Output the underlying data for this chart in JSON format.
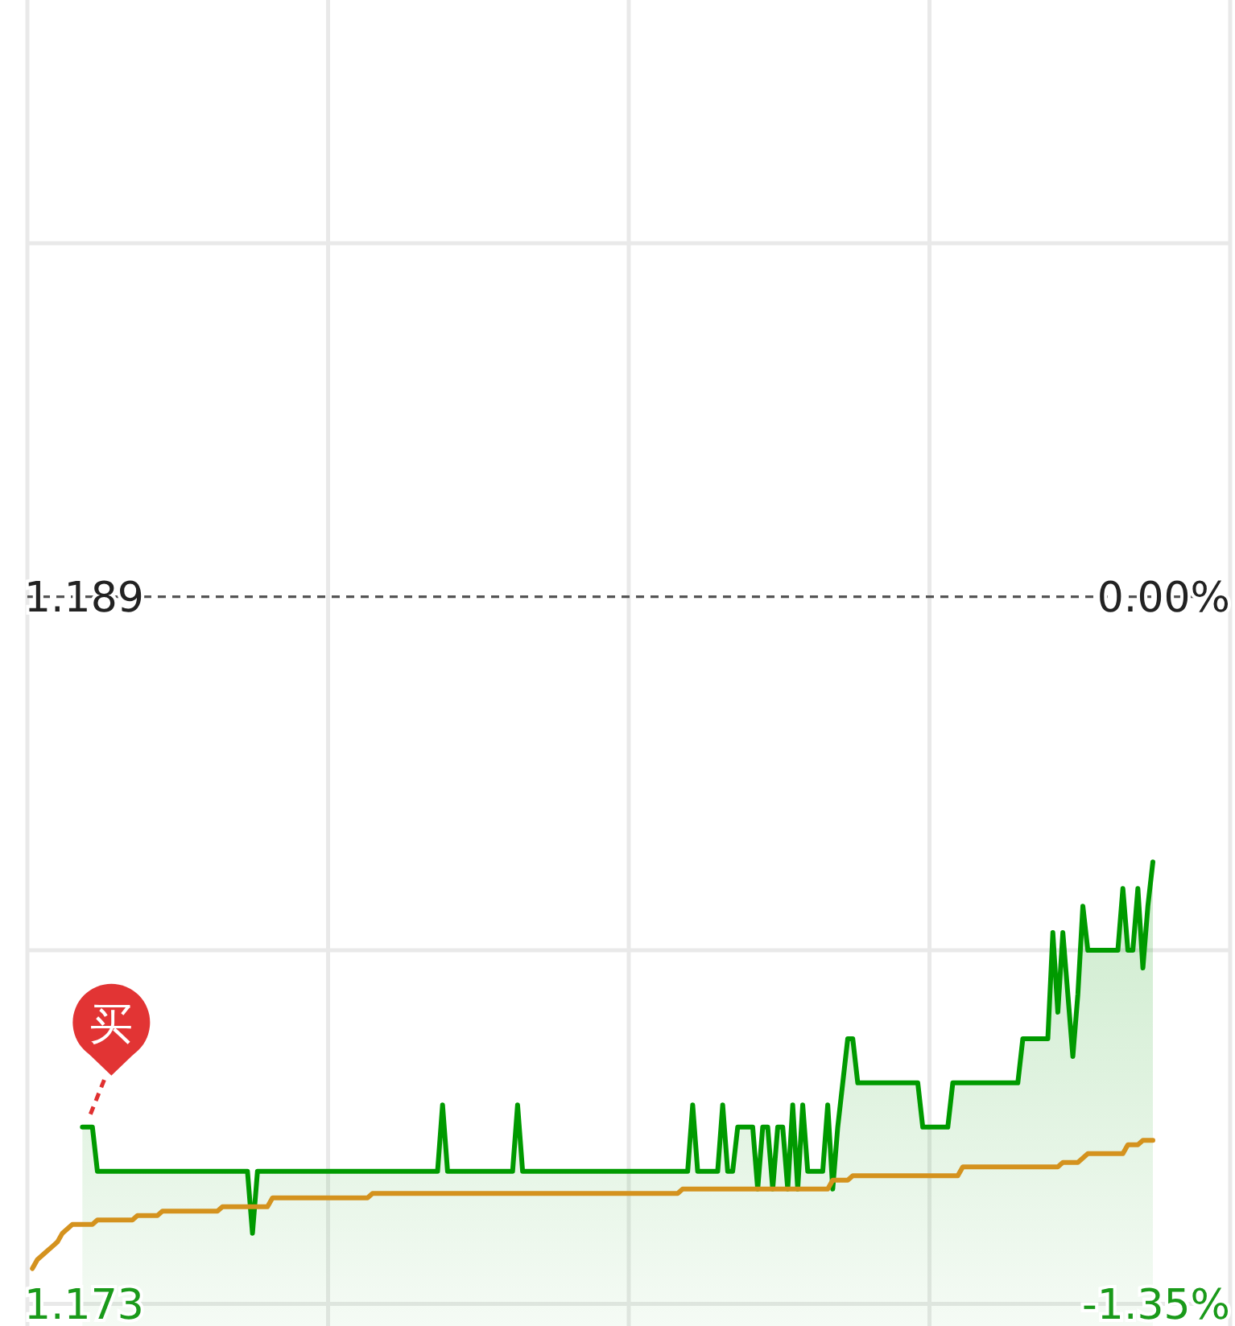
{
  "chart_data": {
    "type": "line",
    "categories": [
      null,
      null,
      null,
      null,
      null,
      null,
      null,
      null,
      null,
      null,
      null,
      null,
      null,
      null,
      null,
      null,
      null,
      null,
      null,
      null,
      null,
      null,
      null,
      null,
      null,
      null,
      null,
      null,
      null,
      null,
      null,
      null,
      null,
      null,
      null,
      null,
      null,
      null,
      null,
      null,
      null,
      null,
      null,
      null,
      null,
      null,
      null,
      null,
      null,
      null,
      null,
      null,
      null,
      null,
      null,
      null,
      null,
      null,
      null,
      null,
      null,
      null,
      null,
      null,
      null,
      null,
      null,
      null,
      null,
      null,
      null,
      null,
      null,
      null,
      null,
      null,
      null,
      null,
      null,
      null,
      null,
      null,
      null,
      null,
      null,
      null,
      null,
      null,
      null,
      null,
      null,
      null,
      null,
      null,
      null,
      null,
      null,
      null,
      null,
      null,
      null,
      null,
      null,
      null,
      null,
      null,
      null,
      null,
      null,
      null,
      null,
      null,
      null,
      null,
      null,
      null,
      null,
      null,
      null,
      null,
      null,
      null,
      null,
      null,
      null,
      null,
      null,
      null,
      null,
      null,
      null,
      null,
      null,
      null,
      null,
      null,
      null,
      null,
      null,
      null,
      null,
      null,
      null,
      null,
      null,
      null,
      null,
      null,
      null,
      null,
      null,
      null,
      null,
      null,
      null,
      null,
      null,
      null,
      null,
      null,
      null,
      null,
      null,
      null,
      null,
      null,
      null,
      null,
      null,
      null,
      null,
      null,
      null,
      null,
      null,
      null,
      null,
      null,
      null,
      null,
      null,
      null,
      null,
      null,
      null,
      null,
      null,
      null,
      null,
      null,
      null,
      null,
      null,
      null,
      null,
      null,
      null,
      null,
      null,
      null,
      null,
      null,
      null,
      null,
      null,
      null,
      null,
      null,
      null,
      null,
      null,
      null,
      null,
      null,
      null,
      null,
      null,
      null,
      null,
      null,
      null,
      null,
      null,
      null,
      null,
      null
    ],
    "series": [
      {
        "type": "area",
        "color": "#009a00",
        "values": [
          null,
          null,
          null,
          null,
          null,
          null,
          null,
          null,
          null,
          null,
          null,
          1.177,
          1.177,
          1.177,
          1.176,
          1.176,
          1.176,
          1.176,
          1.176,
          1.176,
          1.176,
          1.176,
          1.176,
          1.176,
          1.176,
          1.176,
          1.176,
          1.176,
          1.176,
          1.176,
          1.176,
          1.176,
          1.176,
          1.176,
          1.176,
          1.176,
          1.176,
          1.176,
          1.176,
          1.176,
          1.176,
          1.176,
          1.176,
          1.176,
          1.176,
          1.1746,
          1.176,
          1.176,
          1.176,
          1.176,
          1.176,
          1.176,
          1.176,
          1.176,
          1.176,
          1.176,
          1.176,
          1.176,
          1.176,
          1.176,
          1.176,
          1.176,
          1.176,
          1.176,
          1.176,
          1.176,
          1.176,
          1.176,
          1.176,
          1.176,
          1.176,
          1.176,
          1.176,
          1.176,
          1.176,
          1.176,
          1.176,
          1.176,
          1.176,
          1.176,
          1.176,
          1.176,
          1.176,
          1.1775,
          1.176,
          1.176,
          1.176,
          1.176,
          1.176,
          1.176,
          1.176,
          1.176,
          1.176,
          1.176,
          1.176,
          1.176,
          1.176,
          1.176,
          1.1775,
          1.176,
          1.176,
          1.176,
          1.176,
          1.176,
          1.176,
          1.176,
          1.176,
          1.176,
          1.176,
          1.176,
          1.176,
          1.176,
          1.176,
          1.176,
          1.176,
          1.176,
          1.176,
          1.176,
          1.176,
          1.176,
          1.176,
          1.176,
          1.176,
          1.176,
          1.176,
          1.176,
          1.176,
          1.176,
          1.176,
          1.176,
          1.176,
          1.176,
          1.176,
          1.1775,
          1.176,
          1.176,
          1.176,
          1.176,
          1.176,
          1.1775,
          1.176,
          1.176,
          1.177,
          1.177,
          1.177,
          1.177,
          1.1756,
          1.177,
          1.177,
          1.1756,
          1.177,
          1.177,
          1.1756,
          1.1775,
          1.1756,
          1.1775,
          1.176,
          1.176,
          1.176,
          1.176,
          1.1775,
          1.1756,
          1.177,
          1.178,
          1.179,
          1.179,
          1.178,
          1.178,
          1.178,
          1.178,
          1.178,
          1.178,
          1.178,
          1.178,
          1.178,
          1.178,
          1.178,
          1.178,
          1.178,
          1.177,
          1.177,
          1.177,
          1.177,
          1.177,
          1.177,
          1.178,
          1.178,
          1.178,
          1.178,
          1.178,
          1.178,
          1.178,
          1.178,
          1.178,
          1.178,
          1.178,
          1.178,
          1.178,
          1.178,
          1.179,
          1.179,
          1.179,
          1.179,
          1.179,
          1.179,
          1.1814,
          1.1796,
          1.1814,
          1.18,
          1.1786,
          1.18,
          1.182,
          1.181,
          1.181,
          1.181,
          1.181,
          1.181,
          1.181,
          1.181,
          1.1824,
          1.181,
          1.181,
          1.1824,
          1.1806,
          1.182,
          1.183
        ]
      },
      {
        "color": "#d4921e",
        "values": [
          null,
          1.1738,
          1.174,
          1.1741,
          1.1742,
          1.1743,
          1.1744,
          1.1746,
          1.1747,
          1.1748,
          1.1748,
          1.1748,
          1.1748,
          1.1748,
          1.1749,
          1.1749,
          1.1749,
          1.1749,
          1.1749,
          1.1749,
          1.1749,
          1.1749,
          1.175,
          1.175,
          1.175,
          1.175,
          1.175,
          1.1751,
          1.1751,
          1.1751,
          1.1751,
          1.1751,
          1.1751,
          1.1751,
          1.1751,
          1.1751,
          1.1751,
          1.1751,
          1.1751,
          1.1752,
          1.1752,
          1.1752,
          1.1752,
          1.1752,
          1.1752,
          1.1752,
          1.1752,
          1.1752,
          1.1752,
          1.1754,
          1.1754,
          1.1754,
          1.1754,
          1.1754,
          1.1754,
          1.1754,
          1.1754,
          1.1754,
          1.1754,
          1.1754,
          1.1754,
          1.1754,
          1.1754,
          1.1754,
          1.1754,
          1.1754,
          1.1754,
          1.1754,
          1.1754,
          1.1755,
          1.1755,
          1.1755,
          1.1755,
          1.1755,
          1.1755,
          1.1755,
          1.1755,
          1.1755,
          1.1755,
          1.1755,
          1.1755,
          1.1755,
          1.1755,
          1.1755,
          1.1755,
          1.1755,
          1.1755,
          1.1755,
          1.1755,
          1.1755,
          1.1755,
          1.1755,
          1.1755,
          1.1755,
          1.1755,
          1.1755,
          1.1755,
          1.1755,
          1.1755,
          1.1755,
          1.1755,
          1.1755,
          1.1755,
          1.1755,
          1.1755,
          1.1755,
          1.1755,
          1.1755,
          1.1755,
          1.1755,
          1.1755,
          1.1755,
          1.1755,
          1.1755,
          1.1755,
          1.1755,
          1.1755,
          1.1755,
          1.1755,
          1.1755,
          1.1755,
          1.1755,
          1.1755,
          1.1755,
          1.1755,
          1.1755,
          1.1755,
          1.1755,
          1.1755,
          1.1755,
          1.1755,
          1.1756,
          1.1756,
          1.1756,
          1.1756,
          1.1756,
          1.1756,
          1.1756,
          1.1756,
          1.1756,
          1.1756,
          1.1756,
          1.1756,
          1.1756,
          1.1756,
          1.1756,
          1.1756,
          1.1756,
          1.1756,
          1.1756,
          1.1756,
          1.1756,
          1.1756,
          1.1756,
          1.1756,
          1.1756,
          1.1756,
          1.1756,
          1.1756,
          1.1756,
          1.1756,
          1.1758,
          1.1758,
          1.1758,
          1.1758,
          1.1759,
          1.1759,
          1.1759,
          1.1759,
          1.1759,
          1.1759,
          1.1759,
          1.1759,
          1.1759,
          1.1759,
          1.1759,
          1.1759,
          1.1759,
          1.1759,
          1.1759,
          1.1759,
          1.1759,
          1.1759,
          1.1759,
          1.1759,
          1.1759,
          1.1759,
          1.1761,
          1.1761,
          1.1761,
          1.1761,
          1.1761,
          1.1761,
          1.1761,
          1.1761,
          1.1761,
          1.1761,
          1.1761,
          1.1761,
          1.1761,
          1.1761,
          1.1761,
          1.1761,
          1.1761,
          1.1761,
          1.1761,
          1.1761,
          1.1762,
          1.1762,
          1.1762,
          1.1762,
          1.1763,
          1.1764,
          1.1764,
          1.1764,
          1.1764,
          1.1764,
          1.1764,
          1.1764,
          1.1764,
          1.1766,
          1.1766,
          1.1766,
          1.1767,
          1.1767,
          1.1767
        ]
      }
    ],
    "ylim": [
      1.1725,
      1.2025
    ],
    "yticks": [
      {
        "value": 1.173,
        "label": "1.173"
      },
      {
        "value": 1.181,
        "label": null
      },
      {
        "value": 1.189,
        "label": "1.189"
      },
      {
        "value": 1.197,
        "label": null
      }
    ],
    "y2lim": [
      -1.3877,
      1.1354
    ],
    "y2ticks": [
      {
        "value": -1.3457,
        "label": "-1.35%"
      },
      {
        "value": 0,
        "label": "0.00%"
      }
    ],
    "ref_lines": [
      {
        "axis": "y",
        "value": 1.189,
        "line_style": "dashed",
        "color": "#555555"
      }
    ],
    "grid": true,
    "annotations": [
      "买"
    ]
  }
}
